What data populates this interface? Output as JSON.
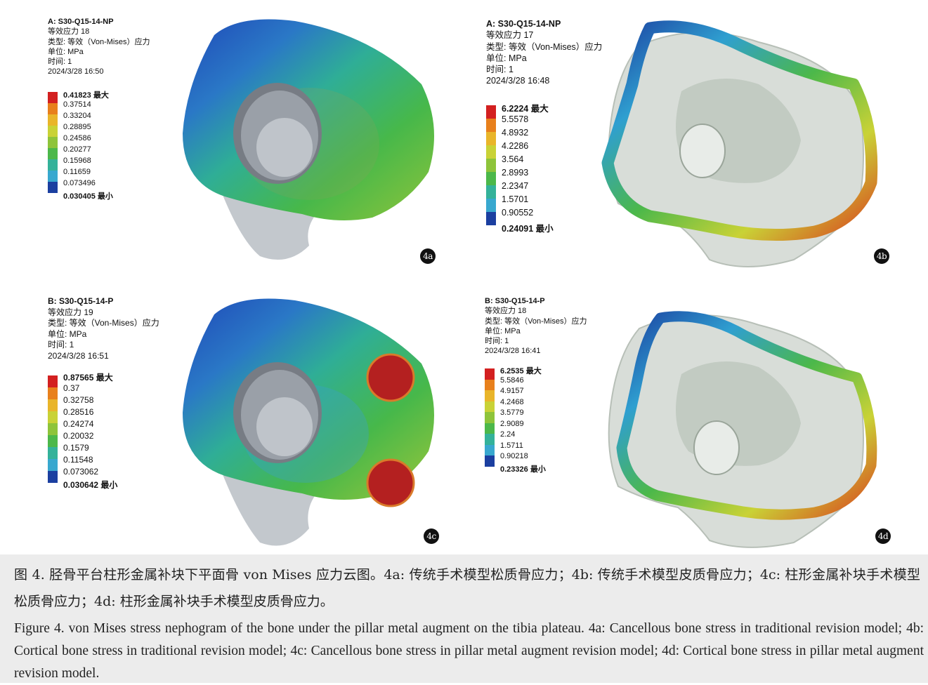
{
  "panels": {
    "p4a": {
      "label": "4a",
      "head": "A: S30-Q15-14-NP",
      "lines": [
        "等效应力 18",
        "类型: 等效（Von-Mises）应力",
        "单位: MPa",
        "时间: 1",
        "2024/3/28 16:50"
      ],
      "legend": [
        "0.41823 最大",
        "0.37514",
        "0.33204",
        "0.28895",
        "0.24586",
        "0.20277",
        "0.15968",
        "0.11659",
        "0.073496",
        "0.030405 最小"
      ]
    },
    "p4b": {
      "label": "4b",
      "head": "A: S30-Q15-14-NP",
      "lines": [
        "等效应力 17",
        "类型: 等效（Von-Mises）应力",
        "单位: MPa",
        "时间: 1",
        "2024/3/28 16:48"
      ],
      "legend": [
        "6.2224 最大",
        "5.5578",
        "4.8932",
        "4.2286",
        "3.564",
        "2.8993",
        "2.2347",
        "1.5701",
        "0.90552",
        "0.24091 最小"
      ]
    },
    "p4c": {
      "label": "4c",
      "head": "B: S30-Q15-14-P",
      "lines": [
        "等效应力 19",
        "类型: 等效（Von-Mises）应力",
        "单位: MPa",
        "时间: 1",
        "2024/3/28 16:51"
      ],
      "legend": [
        "0.87565 最大",
        "0.37",
        "0.32758",
        "0.28516",
        "0.24274",
        "0.20032",
        "0.1579",
        "0.11548",
        "0.073062",
        "0.030642 最小"
      ]
    },
    "p4d": {
      "label": "4d",
      "head": "B: S30-Q15-14-P",
      "lines": [
        "等效应力 18",
        "类型: 等效（Von-Mises）应力",
        "单位: MPa",
        "时间: 1",
        "2024/3/28 16:41"
      ],
      "legend": [
        "6.2535 最大",
        "5.5846",
        "4.9157",
        "4.2468",
        "3.5779",
        "2.9089",
        "2.24",
        "1.5711",
        "0.90218",
        "0.23326 最小"
      ]
    }
  },
  "legend_colors": [
    "#d32020",
    "#e8801c",
    "#e9b52a",
    "#c9d236",
    "#8ec43a",
    "#4cb84a",
    "#34b29a",
    "#38a8cf",
    "#2c79c8",
    "#1b3fa0"
  ],
  "caption": {
    "cn": "图 4. 胫骨平台柱形金属补块下平面骨 von Mises 应力云图。4a: 传统手术模型松质骨应力；4b: 传统手术模型皮质骨应力；4c: 柱形金属补块手术模型松质骨应力；4d: 柱形金属补块手术模型皮质骨应力。",
    "en": "Figure 4. von Mises stress nephogram of the bone under the pillar metal augment on the tibia plateau. 4a: Cancellous bone stress in traditional revision model; 4b: Cortical bone stress in traditional revision model; 4c: Cancellous bone stress in pillar metal augment revision model; 4d: Cortical bone stress in pillar metal augment revision model."
  }
}
